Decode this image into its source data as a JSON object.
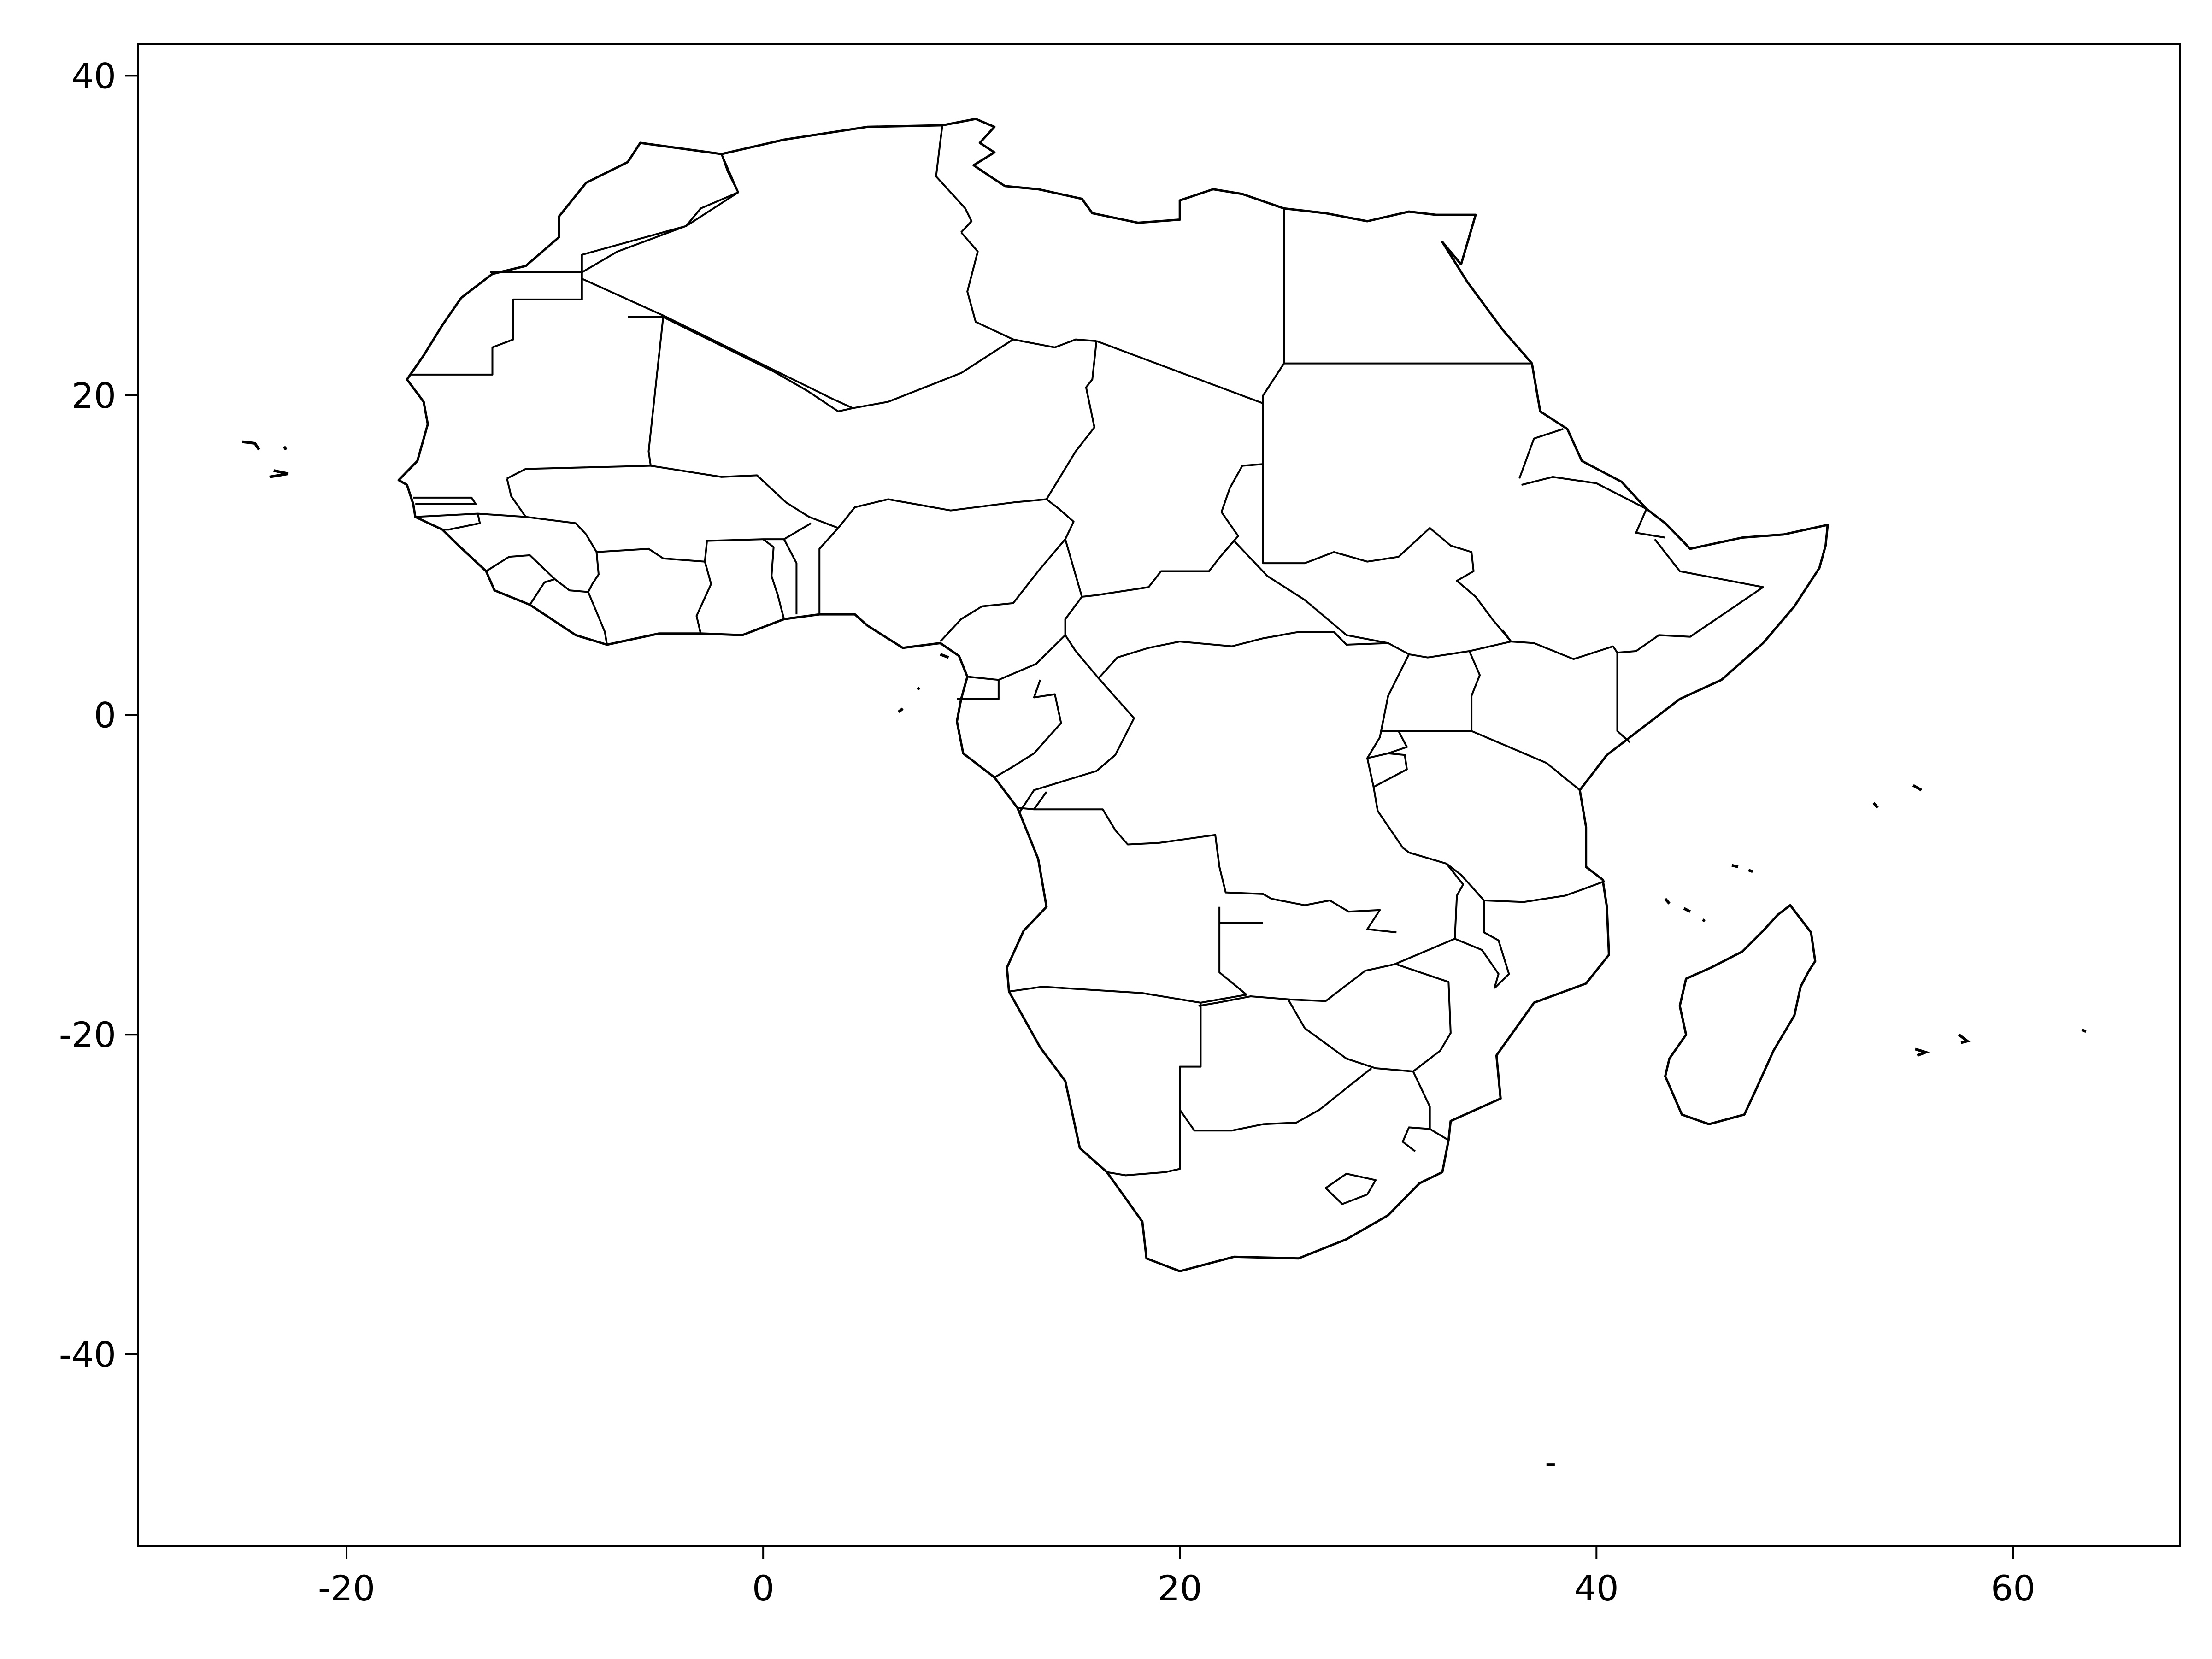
{
  "chart_data": {
    "type": "map",
    "region": "Africa",
    "xlim": [
      -30,
      68
    ],
    "ylim": [
      -52,
      42
    ],
    "x_ticks": [
      -20,
      0,
      20,
      40,
      60
    ],
    "y_ticks": [
      40,
      20,
      0,
      -20,
      -40
    ],
    "x_tick_labels": [
      "-20",
      "0",
      "20",
      "40",
      "60"
    ],
    "y_tick_labels": [
      "40",
      "20",
      "0",
      "-20",
      "-40"
    ],
    "grid": false,
    "legend": "none",
    "line_color": "#000000",
    "fill_color": "#ffffff"
  }
}
